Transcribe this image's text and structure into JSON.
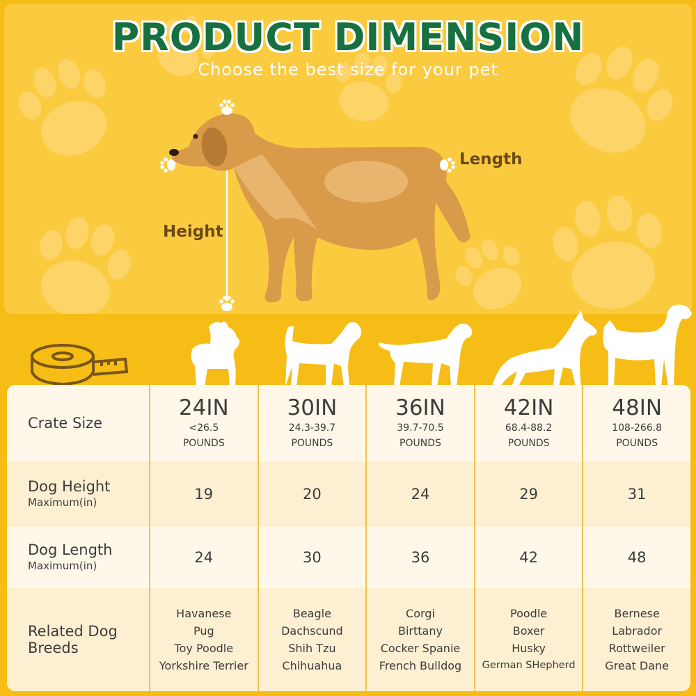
{
  "title": "PRODUCT DIMENSION",
  "subtitle": "Choose the best size for your pet",
  "labels": {
    "length": "Length",
    "height": "Height"
  },
  "colors": {
    "background": "#f6bd16",
    "hero": "#fbcb3f",
    "title": "#17703f",
    "label": "#6b4a16",
    "grid": "#f2c24d"
  },
  "icons": [
    "tape-measure-icon",
    "paw-icon",
    "yorkie-silhouette",
    "beagle-silhouette",
    "pointer-silhouette",
    "shepherd-silhouette",
    "great-dane-silhouette"
  ],
  "table": {
    "headers": {
      "crate": "Crate Size",
      "height": "Dog Height",
      "height_sub": "Maximum(in)",
      "length": "Dog Length",
      "length_sub": "Maximum(in)",
      "breeds": "Related Dog",
      "breeds2": "Breeds"
    },
    "columns": [
      {
        "size": "24IN",
        "weight": "<26.5",
        "unit": "POUNDS",
        "height": "19",
        "length": "24",
        "breeds": [
          "Havanese",
          "Pug",
          "Toy Poodle",
          "Yorkshire Terrier"
        ]
      },
      {
        "size": "30IN",
        "weight": "24.3-39.7",
        "unit": "POUNDS",
        "height": "20",
        "length": "30",
        "breeds": [
          "Beagle",
          "Dachscund",
          "Shih Tzu",
          "Chihuahua"
        ]
      },
      {
        "size": "36IN",
        "weight": "39.7-70.5",
        "unit": "POUNDS",
        "height": "24",
        "length": "36",
        "breeds": [
          "Corgi",
          "Birttany",
          "Cocker Spanie",
          "French Bulldog"
        ]
      },
      {
        "size": "42IN",
        "weight": "68.4-88.2",
        "unit": "POUNDS",
        "height": "29",
        "length": "42",
        "breeds": [
          "Poodle",
          "Boxer",
          "Husky",
          "German SHepherd"
        ]
      },
      {
        "size": "48IN",
        "weight": "108-266.8",
        "unit": "POUNDS",
        "height": "31",
        "length": "48",
        "breeds": [
          "Bernese",
          "Labrador",
          "Rottweiler",
          "Great Dane"
        ]
      }
    ]
  }
}
